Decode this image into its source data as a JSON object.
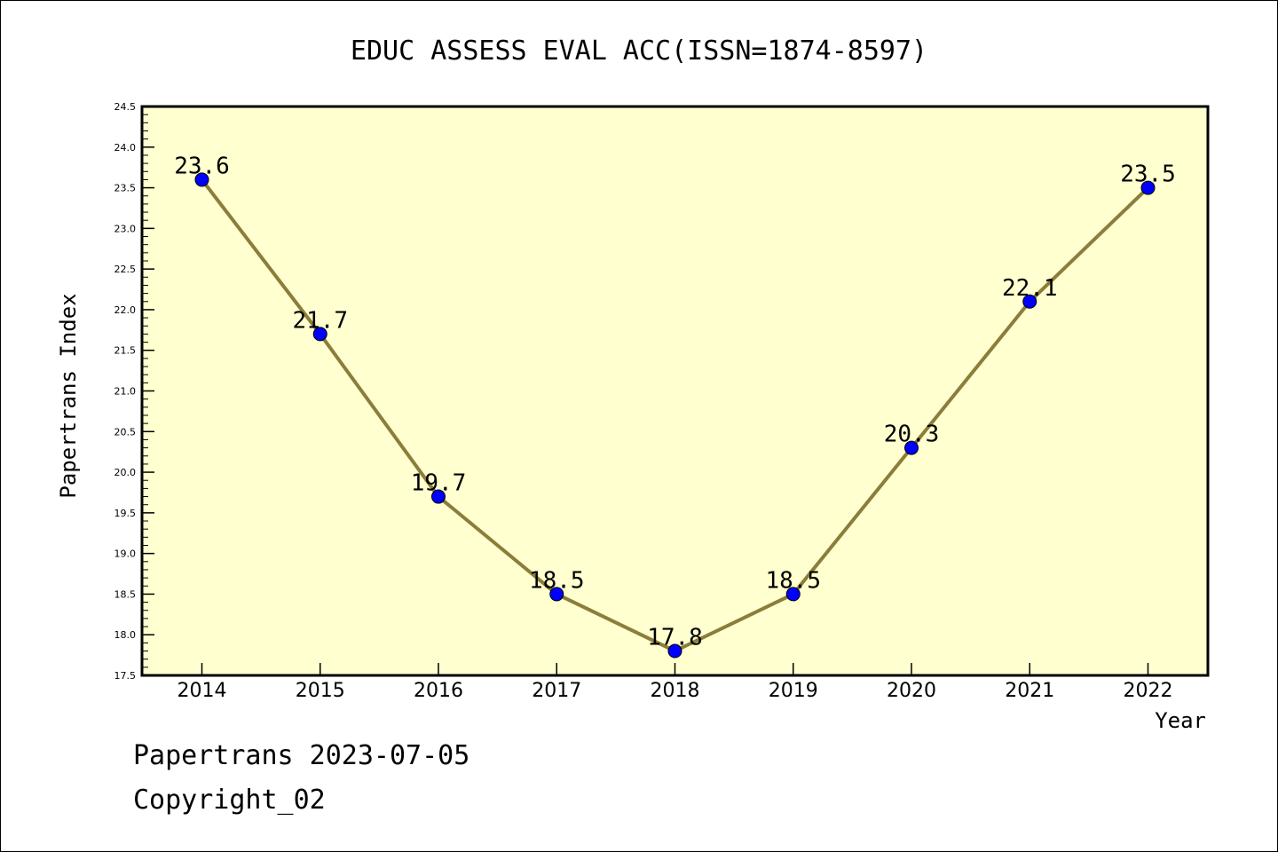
{
  "chart_data": {
    "type": "line",
    "title": "EDUC ASSESS EVAL ACC(ISSN=1874-8597)",
    "xlabel": "Year",
    "ylabel": "Papertrans Index",
    "categories": [
      "2014",
      "2015",
      "2016",
      "2017",
      "2018",
      "2019",
      "2020",
      "2021",
      "2022"
    ],
    "values": [
      23.6,
      21.7,
      19.7,
      18.5,
      17.8,
      18.5,
      20.3,
      22.1,
      23.5
    ],
    "data_labels": [
      "23.6",
      "21.7",
      "19.7",
      "18.5",
      "17.8",
      "18.5",
      "20.3",
      "22.1",
      "23.5"
    ],
    "ylim": [
      17.5,
      24.5
    ],
    "yticks": [
      "17.5",
      "18.0",
      "18.5",
      "19.0",
      "19.5",
      "20.0",
      "20.5",
      "21.0",
      "21.5",
      "22.0",
      "22.5",
      "23.0",
      "23.5",
      "24.0",
      "24.5"
    ],
    "grid": false,
    "colors": {
      "plot_background": "#ffffd0",
      "line": "#8b7d3a",
      "marker": "#0000ff"
    }
  },
  "footer": {
    "line1": "Papertrans 2023-07-05",
    "line2": "Copyright_02"
  }
}
